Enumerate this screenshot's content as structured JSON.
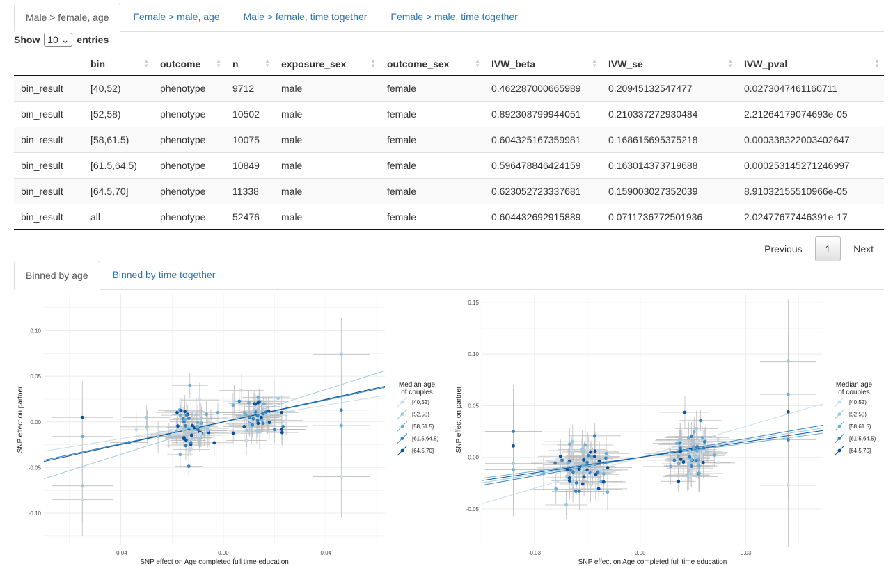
{
  "top_tabs": [
    "Male > female, age",
    "Female > male, age",
    "Male > female, time together",
    "Female > male, time together"
  ],
  "length": {
    "show": "Show",
    "value": "10",
    "entries": "entries"
  },
  "table": {
    "columns": [
      "",
      "bin",
      "outcome",
      "n",
      "exposure_sex",
      "outcome_sex",
      "IVW_beta",
      "IVW_se",
      "IVW_pval"
    ],
    "rows": [
      [
        "bin_result",
        "[40,52)",
        "phenotype",
        "9712",
        "male",
        "female",
        "0.462287000665989",
        "0.20945132547477",
        "0.0273047461160711"
      ],
      [
        "bin_result",
        "[52,58)",
        "phenotype",
        "10502",
        "male",
        "female",
        "0.892308799944051",
        "0.210337272930484",
        "2.21264179074693e-05"
      ],
      [
        "bin_result",
        "[58,61.5)",
        "phenotype",
        "10075",
        "male",
        "female",
        "0.604325167359981",
        "0.168615695375218",
        "0.000338322003402647"
      ],
      [
        "bin_result",
        "[61.5,64.5)",
        "phenotype",
        "10849",
        "male",
        "female",
        "0.596478846424159",
        "0.163014373719688",
        "0.000253145271246997"
      ],
      [
        "bin_result",
        "[64.5,70]",
        "phenotype",
        "11338",
        "male",
        "female",
        "0.623052723337681",
        "0.159003027352039",
        "8.91032155510966e-05"
      ],
      [
        "bin_result",
        "all",
        "phenotype",
        "52476",
        "male",
        "female",
        "0.604432692915889",
        "0.0711736772501936",
        "2.02477677446391e-17"
      ]
    ]
  },
  "pager": {
    "previous": "Previous",
    "page": "1",
    "next": "Next"
  },
  "plot_tabs": [
    "Binned by age",
    "Binned by time together"
  ],
  "colors": [
    "#c6dbef",
    "#9ecae1",
    "#6baed6",
    "#3182bd",
    "#08519c"
  ],
  "chart_data": [
    {
      "type": "scatter",
      "xlabel": "SNP effect on Age completed full time education",
      "ylabel": "SNP effect on partner",
      "xlim": [
        -0.07,
        0.063
      ],
      "ylim": [
        -0.135,
        0.14
      ],
      "xticks": [
        -0.04,
        0.0,
        0.04
      ],
      "xtick_labels": [
        "-0.04",
        "0.00",
        "0.04"
      ],
      "yticks": [
        -0.1,
        -0.05,
        0.0,
        0.05,
        0.1
      ],
      "ytick_labels": [
        "-0.10",
        "-0.05",
        "0.00",
        "0.05",
        "0.10"
      ],
      "legend_title": [
        "Median age",
        "of couples"
      ],
      "legend": [
        "[40,52)",
        "[52,58)",
        "[58,61.5)",
        "[61.5,64.5)",
        "[64.5,70]"
      ],
      "legend_position": "right",
      "slopes": [
        0.46,
        0.89,
        0.6,
        0.6,
        0.62
      ],
      "clusters": [
        {
          "cx": -0.012,
          "cy": -0.005,
          "sx": 0.004,
          "sy": 0.014,
          "n": 60,
          "ex": 0.008,
          "ey": 0.016
        },
        {
          "cx": 0.014,
          "cy": 0.008,
          "sx": 0.006,
          "sy": 0.013,
          "n": 60,
          "ex": 0.009,
          "ey": 0.016
        },
        {
          "cx": -0.028,
          "cy": -0.01,
          "sx": 0.005,
          "sy": 0.012,
          "n": 6,
          "ex": 0.01,
          "ey": 0.02
        }
      ],
      "points": [
        {
          "x": -0.055,
          "y": 0.005,
          "c": 4,
          "ex": 0.012,
          "ey": 0.04
        },
        {
          "x": -0.055,
          "y": -0.016,
          "c": 2,
          "ex": 0.012,
          "ey": 0.04
        },
        {
          "x": -0.055,
          "y": -0.07,
          "c": 1,
          "ex": 0.012,
          "ey": 0.04
        },
        {
          "x": -0.055,
          "y": -0.085,
          "c": 0,
          "ex": 0.012,
          "ey": 0.04
        },
        {
          "x": 0.046,
          "y": 0.074,
          "c": 1,
          "ex": 0.011,
          "ey": 0.04
        },
        {
          "x": 0.046,
          "y": 0.013,
          "c": 3,
          "ex": 0.011,
          "ey": 0.04
        },
        {
          "x": 0.046,
          "y": -0.004,
          "c": 2,
          "ex": 0.011,
          "ey": 0.04
        },
        {
          "x": 0.046,
          "y": -0.06,
          "c": 0,
          "ex": 0.011,
          "ey": 0.045
        }
      ]
    },
    {
      "type": "scatter",
      "xlabel": "SNP effect on Age completed full time education",
      "ylabel": "SNP effect on partner",
      "xlim": [
        -0.045,
        0.052
      ],
      "ylim": [
        -0.085,
        0.158
      ],
      "xticks": [
        -0.03,
        0.0,
        0.03
      ],
      "xtick_labels": [
        "-0.03",
        "0.00",
        "0.03"
      ],
      "yticks": [
        -0.05,
        0.0,
        0.05,
        0.1,
        0.15
      ],
      "ytick_labels": [
        "-0.05",
        "0.00",
        "0.05",
        "0.10",
        "0.15"
      ],
      "legend_title": [
        "Median age",
        "of couples"
      ],
      "legend": [
        "[40,52)",
        "[52,58)",
        "[58,61.5)",
        "[61.5,64.5)",
        "[64.5,70]"
      ],
      "legend_position": "right",
      "slopes": [
        1.0,
        0.55,
        0.45,
        0.6,
        0.5
      ],
      "clusters": [
        {
          "cx": -0.016,
          "cy": -0.012,
          "sx": 0.004,
          "sy": 0.015,
          "n": 70,
          "ex": 0.007,
          "ey": 0.016
        },
        {
          "cx": 0.015,
          "cy": 0.005,
          "sx": 0.003,
          "sy": 0.013,
          "n": 70,
          "ex": 0.007,
          "ey": 0.016
        }
      ],
      "points": [
        {
          "x": -0.036,
          "y": 0.025,
          "c": 3,
          "ex": 0.008,
          "ey": 0.045
        },
        {
          "x": -0.036,
          "y": 0.011,
          "c": 4,
          "ex": 0.008,
          "ey": 0.045
        },
        {
          "x": -0.036,
          "y": -0.006,
          "c": 1,
          "ex": 0.008,
          "ey": 0.045
        },
        {
          "x": -0.036,
          "y": -0.012,
          "c": 2,
          "ex": 0.008,
          "ey": 0.045
        },
        {
          "x": 0.042,
          "y": 0.093,
          "c": 1,
          "ex": 0.008,
          "ey": 0.06
        },
        {
          "x": 0.042,
          "y": 0.061,
          "c": 2,
          "ex": 0.008,
          "ey": 0.06
        },
        {
          "x": 0.042,
          "y": 0.044,
          "c": 4,
          "ex": 0.008,
          "ey": 0.06
        },
        {
          "x": 0.042,
          "y": 0.017,
          "c": 3,
          "ex": 0.008,
          "ey": 0.06
        },
        {
          "x": 0.042,
          "y": -0.027,
          "c": 0,
          "ex": 0.008,
          "ey": 0.06
        }
      ]
    }
  ]
}
